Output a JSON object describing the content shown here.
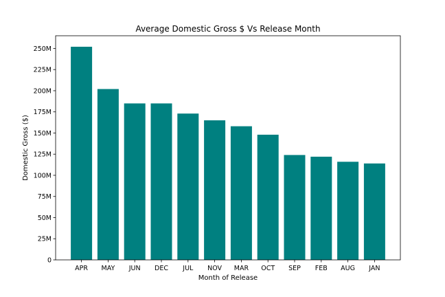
{
  "chart_data": {
    "type": "bar",
    "title": "Average Domestic Gross $ Vs Release Month",
    "xlabel": "Month of Release",
    "ylabel": "Domestic Gross ($)",
    "categories": [
      "APR",
      "MAY",
      "JUN",
      "DEC",
      "JUL",
      "NOV",
      "MAR",
      "OCT",
      "SEP",
      "FEB",
      "AUG",
      "JAN"
    ],
    "values": [
      252000000,
      202000000,
      185000000,
      185000000,
      173000000,
      165000000,
      158000000,
      148000000,
      124000000,
      122000000,
      116000000,
      114000000
    ],
    "ylim": [
      0,
      265000000
    ],
    "yticks": [
      0,
      25000000,
      50000000,
      75000000,
      100000000,
      125000000,
      150000000,
      175000000,
      200000000,
      225000000,
      250000000
    ],
    "ytick_labels": [
      "0",
      "25M",
      "50M",
      "75M",
      "100M",
      "125M",
      "150M",
      "175M",
      "200M",
      "225M",
      "250M"
    ],
    "bar_color": "#008080",
    "grid": false,
    "legend": "none"
  }
}
